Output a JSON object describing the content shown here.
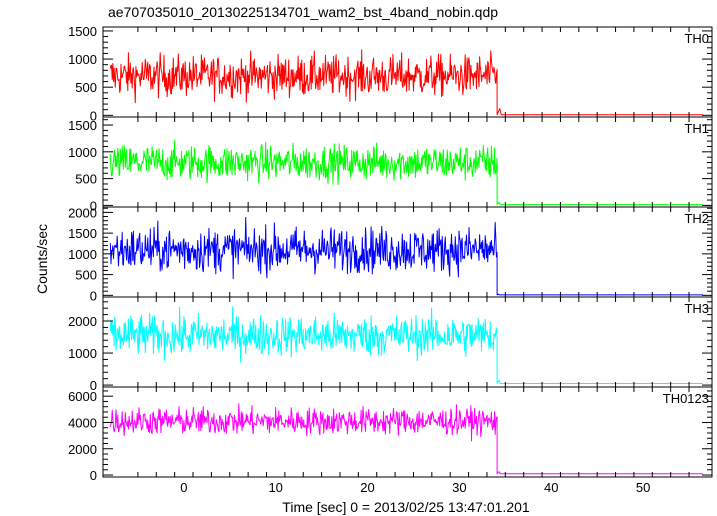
{
  "chart_data": {
    "type": "line",
    "title": "ae707035010_20130225134701_wam2_bst_4band_nobin.qdp",
    "xlabel": "Time [sec] 0 = 2013/02/25 13:47:01.201",
    "ylabel": "Counts/sec",
    "xlim": [
      -8.8,
      57.5
    ],
    "xticks": [
      0,
      10,
      20,
      30,
      40,
      50
    ],
    "xtick_labels": [
      "0",
      "10",
      "20",
      "30",
      "40",
      "50"
    ],
    "grid": false,
    "burst_end_time": 34.1,
    "panels": [
      {
        "name": "TH0",
        "color": "#ff0000",
        "ylim": [
          -30,
          1570
        ],
        "yticks": [
          0,
          500,
          1000,
          1500
        ],
        "ytick_labels": [
          "0",
          "500",
          "1000",
          "1500"
        ],
        "x_start": -8.0,
        "x_end": 56.5,
        "plateau_mean": 700,
        "plateau_low": 200,
        "plateau_high": 1520,
        "post_level": 10,
        "spike_time": 34.4,
        "spike_value": 120
      },
      {
        "name": "TH1",
        "color": "#00ff00",
        "ylim": [
          -30,
          1650
        ],
        "yticks": [
          0,
          500,
          1000,
          1500
        ],
        "ytick_labels": [
          "0",
          "500",
          "1000",
          "1500"
        ],
        "x_start": -8.0,
        "x_end": 56.5,
        "plateau_mean": 800,
        "plateau_low": 250,
        "plateau_high": 1450,
        "post_level": 15,
        "spike_time": 34.3,
        "spike_value": 60
      },
      {
        "name": "TH2",
        "color": "#0000ff",
        "ylim": [
          -40,
          2130
        ],
        "yticks": [
          0,
          500,
          1000,
          1500,
          2000
        ],
        "ytick_labels": [
          "0",
          "500",
          "1000",
          "1500",
          "2000"
        ],
        "x_start": -8.0,
        "x_end": 56.5,
        "plateau_mean": 1100,
        "plateau_low": 150,
        "plateau_high": 2100,
        "post_level": 10,
        "spike_time": 34.2,
        "spike_value": 30
      },
      {
        "name": "TH3",
        "color": "#00ffff",
        "ylim": [
          -60,
          2750
        ],
        "yticks": [
          0,
          1000,
          2000
        ],
        "ytick_labels": [
          "0",
          "1000",
          "2000"
        ],
        "x_start": -8.0,
        "x_end": 56.5,
        "plateau_mean": 1550,
        "plateau_low": 400,
        "plateau_high": 2700,
        "post_level": 50,
        "spike_time": 34.3,
        "spike_value": 150
      },
      {
        "name": "TH0123",
        "color": "#ff00ff",
        "ylim": [
          -150,
          6700
        ],
        "yticks": [
          0,
          2000,
          4000,
          6000
        ],
        "ytick_labels": [
          "0",
          "2000",
          "4000",
          "6000"
        ],
        "x_start": -8.0,
        "x_end": 56.5,
        "plateau_mean": 4100,
        "plateau_low": 2600,
        "plateau_high": 6300,
        "post_level": 100,
        "spike_time": 34.3,
        "spike_value": 250
      }
    ]
  }
}
